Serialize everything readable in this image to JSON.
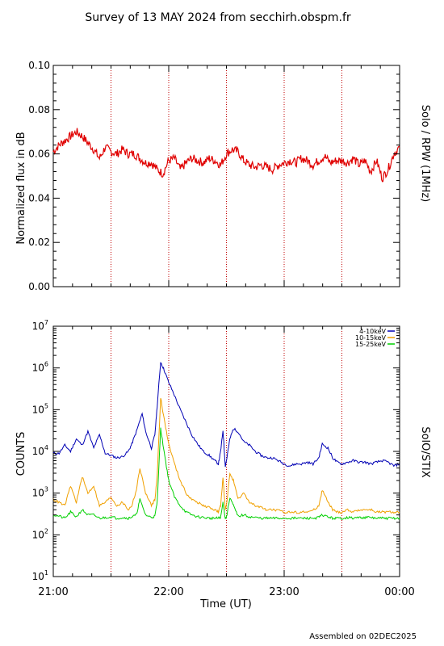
{
  "page": {
    "title": "Survey of 13 MAY 2024 from secchirh.obspm.fr",
    "footer": "Assembled on 02DEC2025"
  },
  "colors": {
    "rpw": "#e00000",
    "low": "#0000b4",
    "mid": "#f0a000",
    "high": "#00d000",
    "marker": "#c00000"
  },
  "chart_data": [
    {
      "type": "line",
      "right_label": "Solo / RPW (1MHz)",
      "ylabel": "Normalized flux in dB",
      "ylim": [
        0.0,
        0.1
      ],
      "yticks": [
        "0.00",
        "0.02",
        "0.04",
        "0.06",
        "0.08",
        "0.10"
      ],
      "xlim_hours": [
        21.0,
        24.0
      ],
      "vertical_markers_hours": [
        21.5,
        22.0,
        22.5,
        23.0,
        23.5
      ],
      "series": [
        {
          "x_hours": [
            21.0,
            21.05,
            21.1,
            21.15,
            21.2,
            21.25,
            21.3,
            21.35,
            21.4,
            21.45,
            21.5,
            21.55,
            21.6,
            21.65,
            21.7,
            21.75,
            21.8,
            21.85,
            21.9,
            21.95,
            22.0,
            22.05,
            22.1,
            22.15,
            22.2,
            22.25,
            22.3,
            22.35,
            22.4,
            22.45,
            22.5,
            22.55,
            22.6,
            22.65,
            22.7,
            22.75,
            22.8,
            22.85,
            22.9,
            22.95,
            23.0,
            23.05,
            23.1,
            23.15,
            23.2,
            23.25,
            23.3,
            23.35,
            23.4,
            23.45,
            23.5,
            23.55,
            23.6,
            23.65,
            23.7,
            23.75,
            23.8,
            23.85,
            23.9,
            23.95,
            24.0
          ],
          "values": [
            0.061,
            0.064,
            0.066,
            0.068,
            0.07,
            0.068,
            0.065,
            0.062,
            0.058,
            0.063,
            0.061,
            0.06,
            0.062,
            0.06,
            0.06,
            0.058,
            0.056,
            0.056,
            0.053,
            0.051,
            0.057,
            0.058,
            0.053,
            0.056,
            0.058,
            0.057,
            0.056,
            0.058,
            0.057,
            0.055,
            0.06,
            0.062,
            0.061,
            0.057,
            0.055,
            0.054,
            0.055,
            0.054,
            0.053,
            0.055,
            0.056,
            0.057,
            0.056,
            0.058,
            0.057,
            0.055,
            0.057,
            0.059,
            0.056,
            0.057,
            0.057,
            0.056,
            0.058,
            0.055,
            0.057,
            0.052,
            0.057,
            0.049,
            0.053,
            0.06,
            0.063
          ]
        }
      ]
    },
    {
      "type": "line",
      "right_label": "SolO/STIX",
      "ylabel": "COUNTS",
      "xlabel": "Time (UT)",
      "y_scale": "log",
      "ylim": [
        10,
        10000000
      ],
      "yticks": [
        {
          "base": "10",
          "exp": "1"
        },
        {
          "base": "10",
          "exp": "2"
        },
        {
          "base": "10",
          "exp": "3"
        },
        {
          "base": "10",
          "exp": "4"
        },
        {
          "base": "10",
          "exp": "5"
        },
        {
          "base": "10",
          "exp": "6"
        },
        {
          "base": "10",
          "exp": "7"
        }
      ],
      "xticks": [
        "21:00",
        "22:00",
        "23:00",
        "00:00"
      ],
      "xlim_hours": [
        21.0,
        24.0
      ],
      "vertical_markers_hours": [
        21.5,
        22.0,
        22.5,
        23.0,
        23.5
      ],
      "series": [
        {
          "name": "4-10keV",
          "x_hours": [
            21.0,
            21.05,
            21.1,
            21.15,
            21.2,
            21.25,
            21.3,
            21.35,
            21.4,
            21.45,
            21.5,
            21.55,
            21.6,
            21.65,
            21.68,
            21.72,
            21.77,
            21.8,
            21.85,
            21.88,
            21.9,
            21.93,
            21.96,
            22.0,
            22.05,
            22.1,
            22.15,
            22.2,
            22.25,
            22.3,
            22.35,
            22.4,
            22.43,
            22.45,
            22.47,
            22.49,
            22.5,
            22.53,
            22.56,
            22.6,
            22.65,
            22.7,
            22.75,
            22.8,
            22.85,
            22.9,
            22.95,
            23.0,
            23.05,
            23.1,
            23.15,
            23.2,
            23.25,
            23.3,
            23.33,
            23.38,
            23.42,
            23.46,
            23.5,
            23.55,
            23.6,
            23.65,
            23.7,
            23.75,
            23.8,
            23.85,
            23.9,
            23.95,
            24.0
          ],
          "values": [
            9000,
            9000,
            14000,
            10000,
            20000,
            14000,
            30000,
            12000,
            25000,
            9000,
            8000,
            7000,
            7500,
            10000,
            15000,
            30000,
            80000,
            30000,
            12000,
            25000,
            120000,
            1400000,
            900000,
            450000,
            220000,
            100000,
            50000,
            25000,
            15000,
            10000,
            8000,
            6000,
            5000,
            10000,
            32000,
            4500,
            6000,
            20000,
            35000,
            30000,
            17000,
            14000,
            10000,
            8000,
            7000,
            7000,
            6000,
            5000,
            4500,
            5000,
            5000,
            5500,
            5000,
            7000,
            15000,
            12000,
            7000,
            5500,
            5000,
            5500,
            6000,
            5500,
            5500,
            5000,
            5500,
            6000,
            5500,
            4500,
            5000
          ]
        },
        {
          "name": "10-15keV",
          "x_hours": [
            21.0,
            21.05,
            21.1,
            21.15,
            21.2,
            21.25,
            21.3,
            21.35,
            21.4,
            21.45,
            21.5,
            21.55,
            21.6,
            21.65,
            21.68,
            21.72,
            21.75,
            21.8,
            21.85,
            21.88,
            21.9,
            21.93,
            21.96,
            22.0,
            22.05,
            22.1,
            22.15,
            22.2,
            22.25,
            22.3,
            22.35,
            22.4,
            22.43,
            22.45,
            22.47,
            22.49,
            22.5,
            22.53,
            22.56,
            22.6,
            22.65,
            22.7,
            22.75,
            22.8,
            22.85,
            22.9,
            22.95,
            23.0,
            23.05,
            23.1,
            23.15,
            23.2,
            23.25,
            23.3,
            23.33,
            23.38,
            23.42,
            23.46,
            23.5,
            23.55,
            23.6,
            23.65,
            23.7,
            23.75,
            23.8,
            23.85,
            23.9,
            23.95,
            24.0
          ],
          "values": [
            700,
            600,
            500,
            1500,
            600,
            2500,
            1000,
            1500,
            500,
            600,
            800,
            500,
            600,
            400,
            500,
            1200,
            4000,
            1000,
            500,
            700,
            2500,
            200000,
            60000,
            15000,
            5000,
            2000,
            1000,
            700,
            600,
            500,
            450,
            400,
            350,
            500,
            2500,
            400,
            500,
            3000,
            2000,
            700,
            1000,
            600,
            500,
            450,
            400,
            400,
            380,
            350,
            350,
            350,
            350,
            360,
            380,
            500,
            1200,
            600,
            400,
            350,
            350,
            400,
            350,
            400,
            400,
            400,
            350,
            350,
            350,
            350,
            350
          ]
        },
        {
          "name": "15-25keV",
          "x_hours": [
            21.0,
            21.05,
            21.1,
            21.15,
            21.2,
            21.25,
            21.3,
            21.35,
            21.4,
            21.45,
            21.5,
            21.55,
            21.6,
            21.65,
            21.68,
            21.72,
            21.75,
            21.8,
            21.85,
            21.88,
            21.9,
            21.93,
            21.96,
            22.0,
            22.05,
            22.1,
            22.15,
            22.2,
            22.25,
            22.3,
            22.35,
            22.4,
            22.43,
            22.45,
            22.47,
            22.49,
            22.5,
            22.53,
            22.56,
            22.6,
            22.65,
            22.7,
            22.75,
            22.8,
            22.85,
            22.9,
            22.95,
            23.0,
            23.05,
            23.1,
            23.15,
            23.2,
            23.25,
            23.3,
            23.33,
            23.38,
            23.42,
            23.46,
            23.5,
            23.55,
            23.6,
            23.65,
            23.7,
            23.75,
            23.8,
            23.85,
            23.9,
            23.95,
            24.0
          ],
          "values": [
            300,
            280,
            250,
            350,
            270,
            400,
            300,
            300,
            250,
            260,
            270,
            250,
            260,
            250,
            270,
            300,
            700,
            300,
            260,
            280,
            600,
            35000,
            10000,
            2000,
            800,
            500,
            350,
            300,
            270,
            260,
            250,
            250,
            250,
            260,
            600,
            250,
            260,
            800,
            500,
            280,
            300,
            270,
            260,
            250,
            250,
            250,
            250,
            250,
            250,
            250,
            250,
            250,
            250,
            260,
            300,
            270,
            250,
            250,
            250,
            260,
            250,
            260,
            260,
            260,
            250,
            250,
            250,
            250,
            250
          ]
        }
      ]
    }
  ]
}
